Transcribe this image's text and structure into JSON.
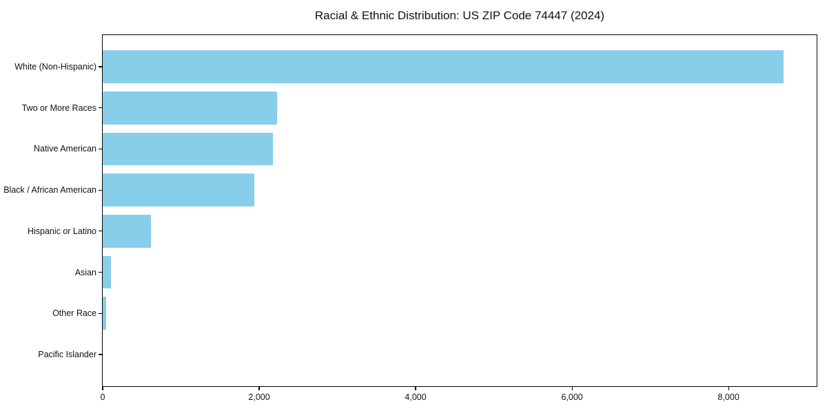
{
  "chart_data": {
    "type": "bar",
    "orientation": "horizontal",
    "title": "Racial & Ethnic Distribution: US ZIP Code 74447 (2024)",
    "categories": [
      "White (Non-Hispanic)",
      "Two or More Races",
      "Native American",
      "Black / African American",
      "Hispanic or Latino",
      "Asian",
      "Other Race",
      "Pacific Islander"
    ],
    "values": [
      8700,
      2230,
      2180,
      1940,
      620,
      110,
      40,
      0
    ],
    "title_text_color": "#111111",
    "xlabel": "",
    "ylabel": "",
    "xlim": [
      0,
      9135
    ],
    "xticks": [
      0,
      2000,
      4000,
      6000,
      8000
    ],
    "xtick_labels": [
      "0",
      "2,000",
      "4,000",
      "6,000",
      "8,000"
    ],
    "bar_color": "#87CEEB",
    "spine_color": "#000000",
    "grid": false,
    "legend": null
  }
}
